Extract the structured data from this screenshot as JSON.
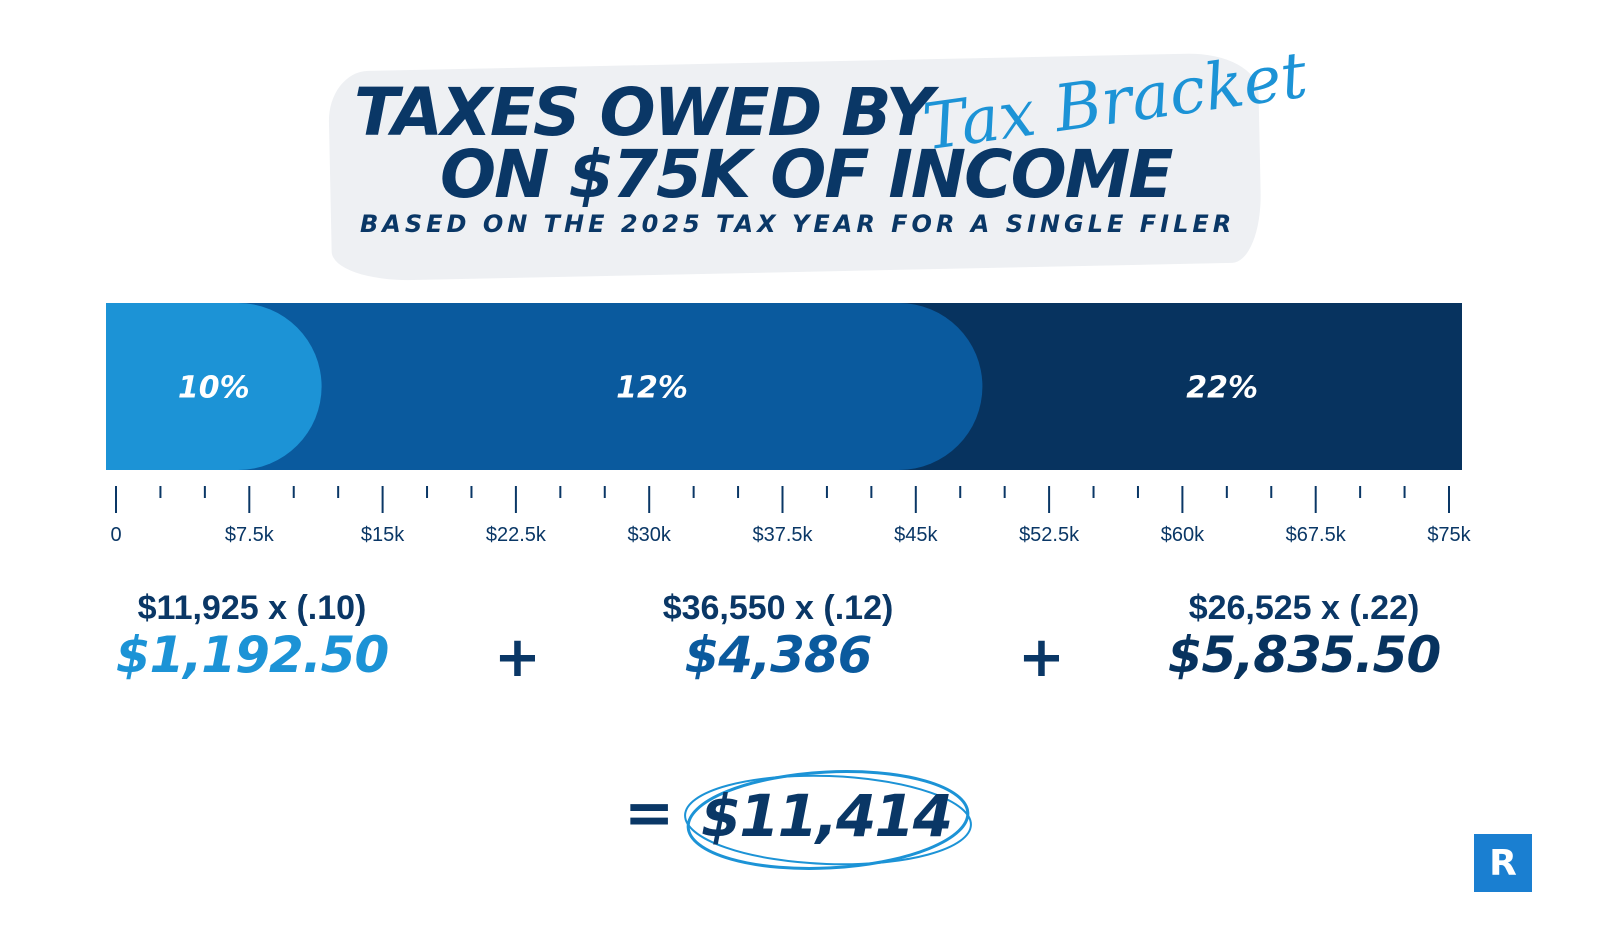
{
  "header": {
    "title_line1": "TAXES OWED BY",
    "title_script": "Tax Bracket",
    "title_line2": "ON $75K OF INCOME",
    "subtitle": "BASED ON THE 2025 TAX YEAR FOR A SINGLE FILER"
  },
  "chart_data": {
    "type": "bar",
    "orientation": "horizontal-stacked",
    "xlim": [
      0,
      75000
    ],
    "xticks": [
      "0",
      "$7.5k",
      "$15k",
      "$22.5k",
      "$30k",
      "$37.5k",
      "$45k",
      "$52.5k",
      "$60k",
      "$67.5k",
      "$75k"
    ],
    "minor_ticks_between": 2,
    "segments": [
      {
        "label": "10%",
        "start": 0,
        "end": 11925,
        "color": "#1c93d6"
      },
      {
        "label": "12%",
        "start": 11925,
        "end": 48475,
        "color": "#0a5a9e"
      },
      {
        "label": "22%",
        "start": 48475,
        "end": 75000,
        "color": "#07335f"
      }
    ]
  },
  "calculations": [
    {
      "formula": "$11,925 x (.10)",
      "result": "$1,192.50",
      "color": "#1c93d6"
    },
    {
      "formula": "$36,550 x (.12)",
      "result": "$4,386",
      "color": "#0a5a9e"
    },
    {
      "formula": "$26,525 x (.22)",
      "result": "$5,835.50",
      "color": "#07335f"
    }
  ],
  "operators": {
    "plus": "+",
    "equals": "="
  },
  "total": {
    "value": "$11,414",
    "circle_color": "#1c93d6"
  },
  "logo": {
    "letter": "R",
    "color": "#1a7fd1"
  }
}
